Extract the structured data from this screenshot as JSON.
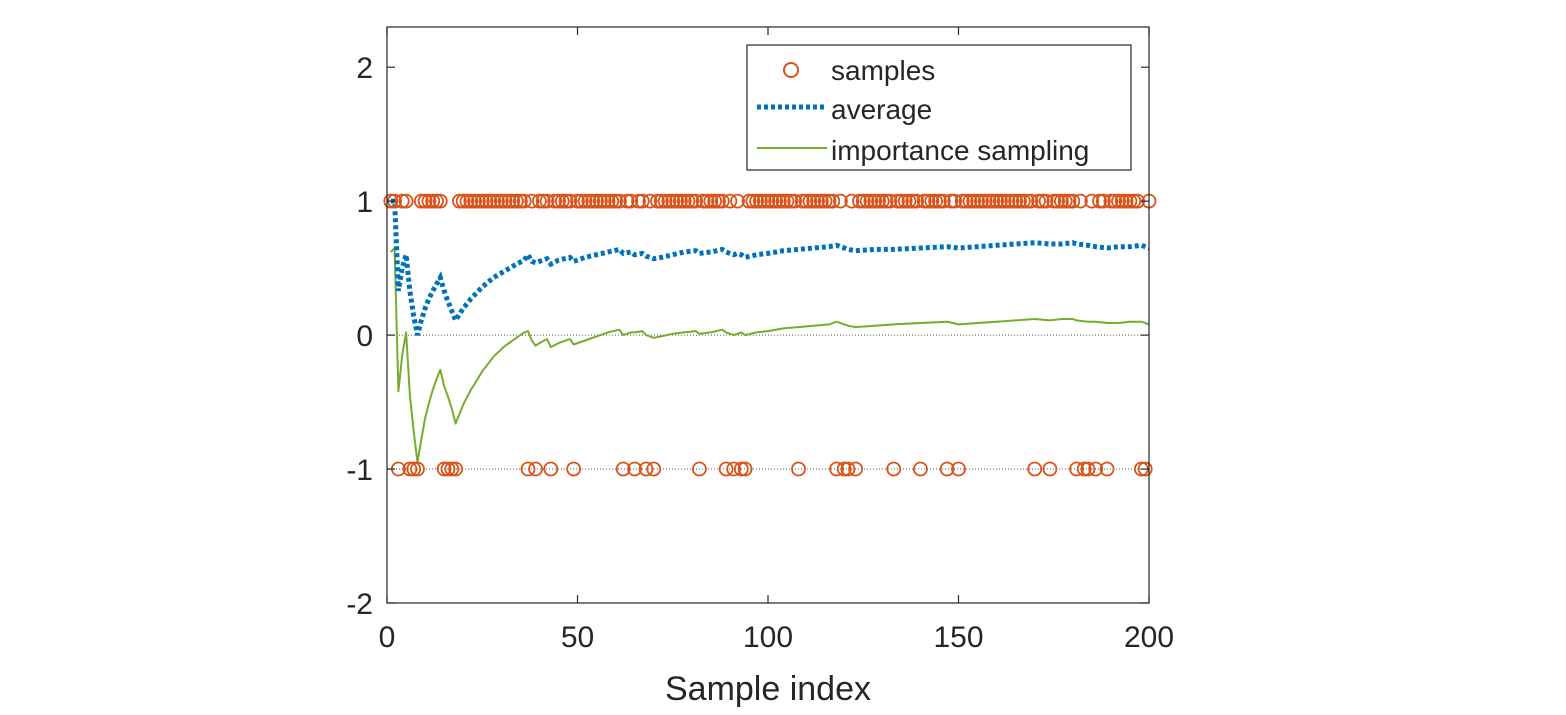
{
  "chart_data": {
    "type": "line",
    "xlabel": "Sample index",
    "ylabel": "",
    "xlim": [
      0,
      200
    ],
    "ylim": [
      -2,
      2.3
    ],
    "xticks": [
      0,
      50,
      100,
      150,
      200
    ],
    "yticks": [
      2,
      1,
      0,
      -1,
      -2
    ],
    "xtick_labels": [
      "0",
      "50",
      "100",
      "150",
      "200"
    ],
    "ytick_labels": [
      "2",
      "1",
      "0",
      "-1",
      "-2"
    ],
    "reference_lines": [
      0,
      -1
    ],
    "legend_position": "top-right",
    "colors": {
      "samples": "#D95319",
      "average": "#0072BD",
      "importance": "#77AC30",
      "axis": "#262626",
      "refline": "#555555"
    },
    "series": [
      {
        "name": "samples",
        "style": "marker-circle",
        "neg_indices": [
          3,
          6,
          7,
          8,
          15,
          16,
          17,
          18,
          37,
          39,
          43,
          49,
          62,
          65,
          68,
          70,
          82,
          89,
          91,
          93,
          94,
          108,
          118,
          120,
          121,
          123,
          133,
          140,
          147,
          150,
          170,
          174,
          181,
          183,
          184,
          186,
          189,
          198,
          199
        ],
        "n": 200
      },
      {
        "name": "average",
        "style": "dotted",
        "x": [
          1,
          2,
          3,
          4,
          5,
          6,
          7,
          8,
          9,
          10,
          11,
          12,
          13,
          14,
          15,
          16,
          17,
          18,
          20,
          22,
          25,
          28,
          31,
          34,
          36,
          37,
          38,
          39,
          40,
          42,
          43,
          45,
          48,
          49,
          52,
          55,
          58,
          61,
          62,
          64,
          65,
          67,
          68,
          70,
          72,
          75,
          78,
          81,
          82,
          85,
          88,
          89,
          91,
          92,
          93,
          94,
          97,
          100,
          104,
          108,
          112,
          116,
          118,
          120,
          121,
          123,
          128,
          133,
          140,
          147,
          150,
          155,
          160,
          165,
          170,
          174,
          177,
          180,
          181,
          184,
          186,
          189,
          192,
          195,
          198,
          199,
          200
        ],
        "y": [
          1.0,
          1.0,
          0.33,
          0.5,
          0.6,
          0.33,
          0.14,
          0.0,
          0.11,
          0.2,
          0.27,
          0.33,
          0.38,
          0.43,
          0.33,
          0.25,
          0.18,
          0.11,
          0.2,
          0.27,
          0.36,
          0.43,
          0.48,
          0.53,
          0.56,
          0.6,
          0.55,
          0.54,
          0.55,
          0.57,
          0.53,
          0.56,
          0.58,
          0.55,
          0.58,
          0.6,
          0.62,
          0.64,
          0.61,
          0.62,
          0.6,
          0.61,
          0.59,
          0.57,
          0.58,
          0.6,
          0.62,
          0.63,
          0.61,
          0.62,
          0.64,
          0.62,
          0.6,
          0.61,
          0.6,
          0.58,
          0.6,
          0.61,
          0.63,
          0.64,
          0.65,
          0.66,
          0.67,
          0.65,
          0.64,
          0.63,
          0.64,
          0.64,
          0.65,
          0.66,
          0.65,
          0.66,
          0.67,
          0.68,
          0.69,
          0.68,
          0.68,
          0.69,
          0.68,
          0.67,
          0.66,
          0.65,
          0.66,
          0.66,
          0.67,
          0.66,
          0.65
        ]
      },
      {
        "name": "importance sampling",
        "style": "solid",
        "x": [
          1,
          2,
          3,
          4,
          5,
          6,
          7,
          8,
          9,
          10,
          11,
          12,
          13,
          14,
          15,
          16,
          17,
          18,
          20,
          22,
          25,
          28,
          31,
          34,
          36,
          37,
          38,
          39,
          40,
          42,
          43,
          45,
          48,
          49,
          52,
          55,
          58,
          61,
          62,
          64,
          65,
          67,
          68,
          70,
          72,
          75,
          78,
          81,
          82,
          85,
          88,
          89,
          91,
          92,
          93,
          94,
          97,
          100,
          104,
          108,
          112,
          116,
          118,
          120,
          121,
          123,
          128,
          133,
          140,
          147,
          150,
          155,
          160,
          165,
          170,
          174,
          177,
          180,
          181,
          184,
          186,
          189,
          192,
          195,
          198,
          199,
          200
        ],
        "y": [
          0.62,
          0.65,
          -0.42,
          -0.15,
          0.02,
          -0.45,
          -0.72,
          -0.95,
          -0.78,
          -0.62,
          -0.51,
          -0.41,
          -0.33,
          -0.26,
          -0.38,
          -0.46,
          -0.55,
          -0.66,
          -0.52,
          -0.41,
          -0.27,
          -0.16,
          -0.08,
          -0.02,
          0.02,
          0.03,
          -0.04,
          -0.08,
          -0.06,
          -0.03,
          -0.09,
          -0.06,
          -0.03,
          -0.07,
          -0.04,
          -0.01,
          0.02,
          0.04,
          0.0,
          0.02,
          0.02,
          0.03,
          0.0,
          -0.02,
          -0.01,
          0.01,
          0.02,
          0.03,
          0.01,
          0.02,
          0.04,
          0.02,
          0.0,
          0.01,
          0.02,
          0.0,
          0.02,
          0.03,
          0.05,
          0.06,
          0.07,
          0.08,
          0.1,
          0.08,
          0.07,
          0.06,
          0.07,
          0.08,
          0.09,
          0.1,
          0.08,
          0.09,
          0.1,
          0.11,
          0.12,
          0.11,
          0.12,
          0.12,
          0.11,
          0.1,
          0.1,
          0.09,
          0.09,
          0.1,
          0.1,
          0.09,
          0.08
        ]
      }
    ]
  }
}
